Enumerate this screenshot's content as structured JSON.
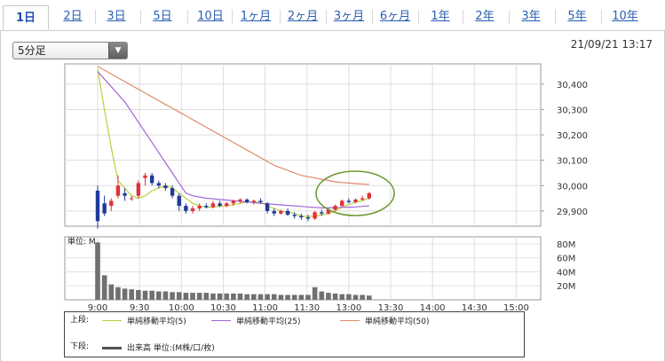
{
  "tabs": [
    {
      "label": "1日",
      "active": true
    },
    {
      "label": "2日"
    },
    {
      "label": "3日"
    },
    {
      "label": "5日"
    },
    {
      "label": "10日"
    },
    {
      "label": "1ヶ月"
    },
    {
      "label": "2ヶ月"
    },
    {
      "label": "3ヶ月"
    },
    {
      "label": "6ヶ月"
    },
    {
      "label": "1年"
    },
    {
      "label": "2年"
    },
    {
      "label": "3年"
    },
    {
      "label": "5年"
    },
    {
      "label": "10年"
    }
  ],
  "interval_select": {
    "value": "5分足"
  },
  "timestamp": "21/09/21 13:17",
  "chart_data": {
    "type": "candlestick",
    "price_axis": {
      "ticks": [
        "30,400",
        "30,300",
        "30,200",
        "30,100",
        "30,000",
        "29,900"
      ],
      "values": [
        30400,
        30300,
        30200,
        30100,
        30000,
        29900
      ],
      "ylim": [
        29840,
        30480
      ]
    },
    "x_ticks": [
      "9:00",
      "9:30",
      "10:00",
      "10:30",
      "11:00",
      "11:30",
      "13:00",
      "13:30",
      "14:00",
      "14:30",
      "15:00"
    ],
    "candles": [
      [
        29980,
        30000,
        29830,
        29860
      ],
      [
        29930,
        29960,
        29880,
        29890
      ],
      [
        29920,
        29950,
        29900,
        29940
      ],
      [
        29960,
        30040,
        29950,
        30000
      ],
      [
        29970,
        29990,
        29940,
        29960
      ],
      [
        29950,
        29960,
        29940,
        29950
      ],
      [
        29960,
        30020,
        29950,
        30010
      ],
      [
        30030,
        30050,
        30000,
        30040
      ],
      [
        30040,
        30050,
        30000,
        30010
      ],
      [
        30010,
        30020,
        29990,
        30000
      ],
      [
        30000,
        30010,
        29980,
        29990
      ],
      [
        29990,
        30000,
        29950,
        29960
      ],
      [
        29960,
        29970,
        29900,
        29920
      ],
      [
        29920,
        29930,
        29890,
        29900
      ],
      [
        29900,
        29920,
        29890,
        29910
      ],
      [
        29910,
        29930,
        29900,
        29920
      ],
      [
        29920,
        29930,
        29910,
        29915
      ],
      [
        29915,
        29940,
        29910,
        29930
      ],
      [
        29930,
        29940,
        29915,
        29920
      ],
      [
        29920,
        29935,
        29915,
        29930
      ],
      [
        29930,
        29945,
        29920,
        29940
      ],
      [
        29940,
        29950,
        29930,
        29945
      ],
      [
        29945,
        29950,
        29930,
        29935
      ],
      [
        29935,
        29945,
        29925,
        29940
      ],
      [
        29940,
        29950,
        29930,
        29935
      ],
      [
        29930,
        29935,
        29890,
        29900
      ],
      [
        29900,
        29910,
        29880,
        29890
      ],
      [
        29890,
        29905,
        29885,
        29900
      ],
      [
        29900,
        29910,
        29880,
        29885
      ],
      [
        29885,
        29895,
        29870,
        29880
      ],
      [
        29880,
        29890,
        29865,
        29875
      ],
      [
        29875,
        29885,
        29860,
        29870
      ],
      [
        29870,
        29900,
        29865,
        29895
      ],
      [
        29895,
        29905,
        29880,
        29890
      ],
      [
        29890,
        29910,
        29885,
        29905
      ],
      [
        29905,
        29925,
        29900,
        29920
      ],
      [
        29920,
        29945,
        29915,
        29940
      ],
      [
        29940,
        29950,
        29930,
        29935
      ],
      [
        29935,
        29950,
        29930,
        29945
      ],
      [
        29945,
        29960,
        29940,
        29950
      ],
      [
        29950,
        29975,
        29945,
        29970
      ]
    ],
    "moving_averages": [
      {
        "name": "単純移動平均(5)",
        "color": "#bcd03a",
        "values": [
          30460,
          30300,
          30150,
          30020,
          29990,
          29960,
          29950,
          29960,
          29980,
          29990,
          30000,
          29990,
          29970,
          29950,
          29930,
          29920,
          29915,
          29915,
          29920,
          29920,
          29925,
          29930,
          29935,
          29935,
          29935,
          29920,
          29910,
          29900,
          29895,
          29890,
          29880,
          29878,
          29880,
          29885,
          29890,
          29900,
          29915,
          29925,
          29935,
          29940,
          29950
        ]
      },
      {
        "name": "単純移動平均(25)",
        "color": "#a066d6",
        "values": [
          30450,
          30420,
          30390,
          30360,
          30330,
          30290,
          30250,
          30210,
          30170,
          30130,
          30090,
          30050,
          30010,
          29970,
          29960,
          29955,
          29950,
          29948,
          29945,
          29943,
          29940,
          29938,
          29935,
          29933,
          29930,
          29928,
          29926,
          29924,
          29922,
          29920,
          29918,
          29916,
          29914,
          29912,
          29912,
          29913,
          29914,
          29915,
          29916,
          29918,
          29920
        ]
      },
      {
        "name": "単純移動平均(50)",
        "color": "#e08a6c",
        "values": [
          30470,
          30455,
          30440,
          30425,
          30410,
          30395,
          30380,
          30365,
          30350,
          30335,
          30320,
          30305,
          30290,
          30275,
          30260,
          30245,
          30230,
          30215,
          30200,
          30185,
          30170,
          30155,
          30140,
          30125,
          30110,
          30095,
          30080,
          30070,
          30060,
          30050,
          30040,
          30035,
          30030,
          30025,
          30020,
          30015,
          30012,
          30010,
          30008,
          30006,
          30005
        ]
      }
    ],
    "volume_axis": {
      "label": "単位: M",
      "ticks": [
        "80M",
        "60M",
        "40M",
        "20M"
      ],
      "values": [
        80,
        60,
        40,
        20
      ],
      "ylim": [
        0,
        90
      ]
    },
    "volume": [
      82,
      35,
      22,
      18,
      16,
      15,
      14,
      13,
      13,
      12,
      12,
      11,
      11,
      10,
      10,
      10,
      10,
      9,
      9,
      9,
      9,
      9,
      8,
      8,
      8,
      8,
      8,
      7,
      7,
      7,
      7,
      7,
      18,
      12,
      10,
      9,
      8,
      8,
      7,
      7,
      6
    ],
    "legend": {
      "upper_label": "上段:",
      "lower_label": "下段:",
      "volume_label": "出来高 単位:(M株/口/枚)"
    }
  }
}
